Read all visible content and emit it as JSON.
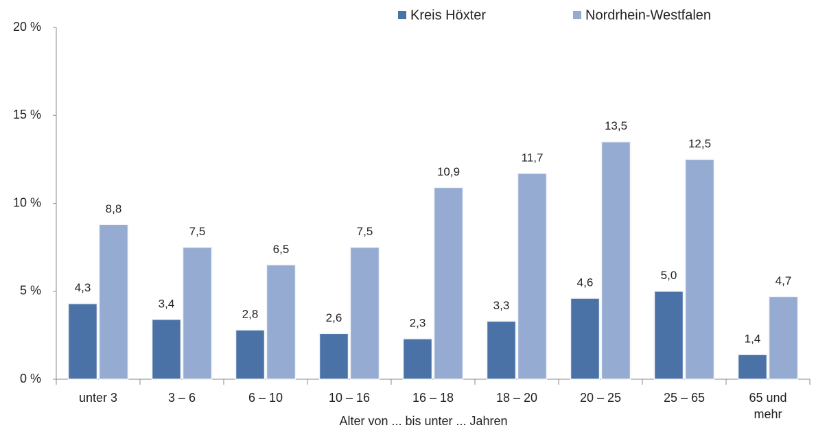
{
  "chart_data": {
    "type": "bar",
    "x_label": "Alter von ... bis unter ... Jahren",
    "categories": [
      "unter 3",
      "3 –  6",
      "6 – 10",
      "10 – 16",
      "16 – 18",
      "18 – 20",
      "20 – 25",
      "25 – 65",
      "65 und mehr"
    ],
    "series": [
      {
        "name": "Kreis Höxter",
        "color": "#4a72a6",
        "values": [
          4.3,
          3.4,
          2.8,
          2.6,
          2.3,
          3.3,
          4.6,
          5.0,
          1.4
        ],
        "value_labels": [
          "4,3",
          "3,4",
          "2,8",
          "2,6",
          "2,3",
          "3,3",
          "4,6",
          "5,0",
          "1,4"
        ]
      },
      {
        "name": "Nordrhein-Westfalen",
        "color": "#95abd2",
        "values": [
          8.8,
          7.5,
          6.5,
          7.5,
          10.9,
          11.7,
          13.5,
          12.5,
          4.7
        ],
        "value_labels": [
          "8,8",
          "7,5",
          "6,5",
          "7,5",
          "10,9",
          "11,7",
          "13,5",
          "12,5",
          "4,7"
        ]
      }
    ],
    "ylim": [
      0,
      20
    ],
    "yticks": [
      {
        "value": 0,
        "label": "0 %"
      },
      {
        "value": 5,
        "label": "5 %"
      },
      {
        "value": 10,
        "label": "10 %"
      },
      {
        "value": 15,
        "label": "15 %"
      },
      {
        "value": 20,
        "label": "20 %"
      }
    ],
    "legend": "top"
  }
}
